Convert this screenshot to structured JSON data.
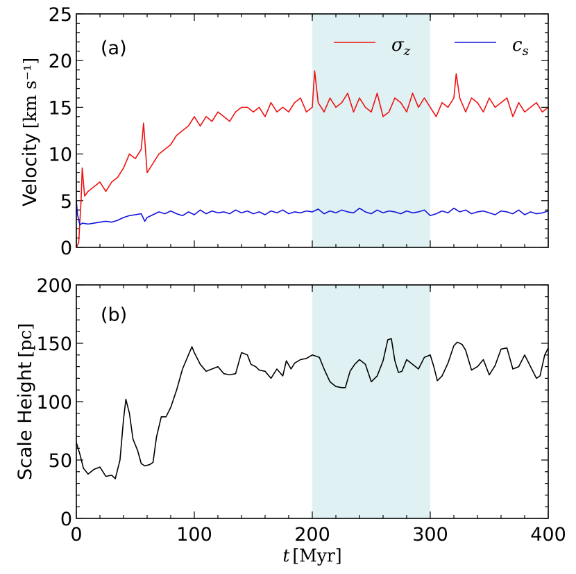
{
  "chart_data": [
    {
      "type": "line",
      "panel_label": "(a)",
      "ylabel": "Velocity",
      "yunit": "[km s⁻¹]",
      "xlim": [
        0,
        400
      ],
      "ylim": [
        0,
        25
      ],
      "yticks": [
        "0",
        "5",
        "10",
        "15",
        "20",
        "25"
      ],
      "shaded_region": [
        200,
        300
      ],
      "shade_color": "#dff1f3",
      "legend": {
        "placement": "top-right"
      },
      "series": [
        {
          "name": "σ_z",
          "label_main": "σ",
          "label_sub": "z",
          "color": "#ee1111",
          "x": [
            0,
            2,
            4,
            5,
            7,
            10,
            15,
            20,
            25,
            30,
            35,
            40,
            45,
            50,
            55,
            57,
            60,
            65,
            70,
            75,
            80,
            85,
            90,
            95,
            100,
            105,
            110,
            115,
            120,
            125,
            130,
            135,
            140,
            145,
            150,
            155,
            160,
            165,
            170,
            175,
            180,
            185,
            190,
            195,
            200,
            202,
            205,
            210,
            215,
            220,
            225,
            230,
            235,
            240,
            245,
            250,
            255,
            260,
            265,
            270,
            275,
            280,
            285,
            290,
            295,
            300,
            305,
            310,
            315,
            320,
            322,
            325,
            330,
            335,
            340,
            345,
            350,
            355,
            360,
            365,
            370,
            375,
            380,
            385,
            390,
            395,
            400
          ],
          "values": [
            0.0,
            0.5,
            5.0,
            8.5,
            5.5,
            6.0,
            6.5,
            7.0,
            6.0,
            7.0,
            7.5,
            8.5,
            10.0,
            9.5,
            10.5,
            13.3,
            8.0,
            9.0,
            10.0,
            10.5,
            11.0,
            12.0,
            12.5,
            13.0,
            14.0,
            13.0,
            14.0,
            13.5,
            14.5,
            14.0,
            13.5,
            14.5,
            15.0,
            15.0,
            14.5,
            15.0,
            14.0,
            15.5,
            14.5,
            15.0,
            14.5,
            15.5,
            16.0,
            14.5,
            15.0,
            18.9,
            15.5,
            14.5,
            16.0,
            15.0,
            15.5,
            16.5,
            14.5,
            16.0,
            15.0,
            14.5,
            16.5,
            14.0,
            14.5,
            16.0,
            15.5,
            14.5,
            16.5,
            15.0,
            16.0,
            15.0,
            14.0,
            15.5,
            15.0,
            16.0,
            18.6,
            16.0,
            14.5,
            16.0,
            15.5,
            14.5,
            16.0,
            15.0,
            15.5,
            16.0,
            14.0,
            15.5,
            14.5,
            15.0,
            15.5,
            14.5,
            15.0
          ]
        },
        {
          "name": "c_s",
          "label_main": "c",
          "label_sub": "s",
          "color": "#1111dd",
          "x": [
            0,
            1,
            3,
            5,
            10,
            15,
            20,
            25,
            30,
            35,
            40,
            45,
            50,
            55,
            58,
            60,
            65,
            70,
            75,
            80,
            85,
            90,
            95,
            100,
            105,
            110,
            115,
            120,
            125,
            130,
            135,
            140,
            145,
            150,
            155,
            160,
            165,
            170,
            175,
            180,
            185,
            190,
            195,
            200,
            205,
            210,
            215,
            220,
            225,
            230,
            235,
            240,
            245,
            250,
            255,
            260,
            265,
            270,
            275,
            280,
            285,
            290,
            295,
            300,
            305,
            310,
            315,
            320,
            325,
            330,
            335,
            340,
            345,
            350,
            355,
            360,
            365,
            370,
            375,
            380,
            385,
            390,
            395,
            400
          ],
          "values": [
            5.0,
            3.5,
            2.4,
            2.6,
            2.5,
            2.6,
            2.7,
            2.8,
            2.7,
            2.9,
            3.2,
            3.4,
            3.5,
            3.6,
            2.8,
            3.2,
            3.5,
            3.8,
            3.6,
            3.9,
            3.6,
            3.4,
            3.8,
            3.5,
            4.0,
            3.6,
            3.9,
            3.7,
            3.8,
            3.6,
            4.0,
            3.7,
            3.9,
            3.6,
            3.8,
            3.5,
            3.9,
            3.7,
            4.0,
            3.6,
            3.8,
            3.7,
            3.9,
            3.8,
            4.1,
            3.6,
            3.9,
            3.7,
            4.0,
            3.8,
            3.7,
            4.2,
            3.8,
            3.6,
            4.0,
            3.7,
            3.9,
            3.8,
            3.6,
            3.9,
            3.7,
            3.8,
            4.0,
            3.4,
            3.6,
            3.9,
            3.7,
            4.2,
            3.8,
            4.0,
            3.6,
            3.8,
            3.9,
            3.7,
            3.5,
            3.9,
            3.8,
            3.6,
            4.0,
            3.5,
            3.8,
            3.6,
            3.7,
            3.9
          ]
        }
      ]
    },
    {
      "type": "line",
      "panel_label": "(b)",
      "ylabel": "Scale Height",
      "yunit": "[pc]",
      "xlabel": "t",
      "xunit": "[Myr]",
      "xlim": [
        0,
        400
      ],
      "ylim": [
        0,
        200
      ],
      "xticks": [
        "0",
        "100",
        "200",
        "300",
        "400"
      ],
      "yticks": [
        "0",
        "50",
        "100",
        "150",
        "200"
      ],
      "shaded_region": [
        200,
        300
      ],
      "shade_color": "#dff1f3",
      "series": [
        {
          "name": "Scale Height",
          "color": "#000000",
          "x": [
            0,
            3,
            6,
            10,
            15,
            20,
            25,
            30,
            33,
            37,
            40,
            42,
            45,
            48,
            52,
            55,
            58,
            62,
            65,
            68,
            72,
            76,
            80,
            85,
            90,
            95,
            98,
            100,
            105,
            110,
            115,
            120,
            125,
            130,
            135,
            140,
            145,
            148,
            152,
            155,
            160,
            165,
            170,
            175,
            178,
            182,
            185,
            190,
            195,
            200,
            203,
            206,
            210,
            215,
            220,
            225,
            228,
            232,
            236,
            240,
            245,
            250,
            255,
            260,
            264,
            267,
            270,
            273,
            276,
            280,
            285,
            290,
            295,
            300,
            303,
            306,
            310,
            315,
            320,
            323,
            327,
            330,
            335,
            340,
            345,
            350,
            355,
            360,
            365,
            370,
            375,
            380,
            385,
            390,
            393,
            397,
            400
          ],
          "values": [
            65,
            55,
            43,
            38,
            42,
            44,
            36,
            37,
            34,
            50,
            85,
            102,
            90,
            68,
            58,
            47,
            45,
            46,
            48,
            70,
            87,
            87,
            95,
            110,
            128,
            140,
            147,
            142,
            132,
            126,
            128,
            130,
            124,
            123,
            124,
            142,
            140,
            132,
            130,
            127,
            126,
            120,
            128,
            122,
            135,
            128,
            133,
            136,
            137,
            140,
            139,
            138,
            128,
            117,
            113,
            112,
            112,
            126,
            132,
            136,
            132,
            117,
            122,
            135,
            153,
            154,
            135,
            125,
            126,
            136,
            132,
            128,
            138,
            140,
            130,
            118,
            122,
            133,
            148,
            151,
            149,
            144,
            127,
            130,
            136,
            123,
            131,
            145,
            146,
            128,
            130,
            140,
            130,
            120,
            122,
            140,
            146
          ]
        }
      ]
    }
  ]
}
